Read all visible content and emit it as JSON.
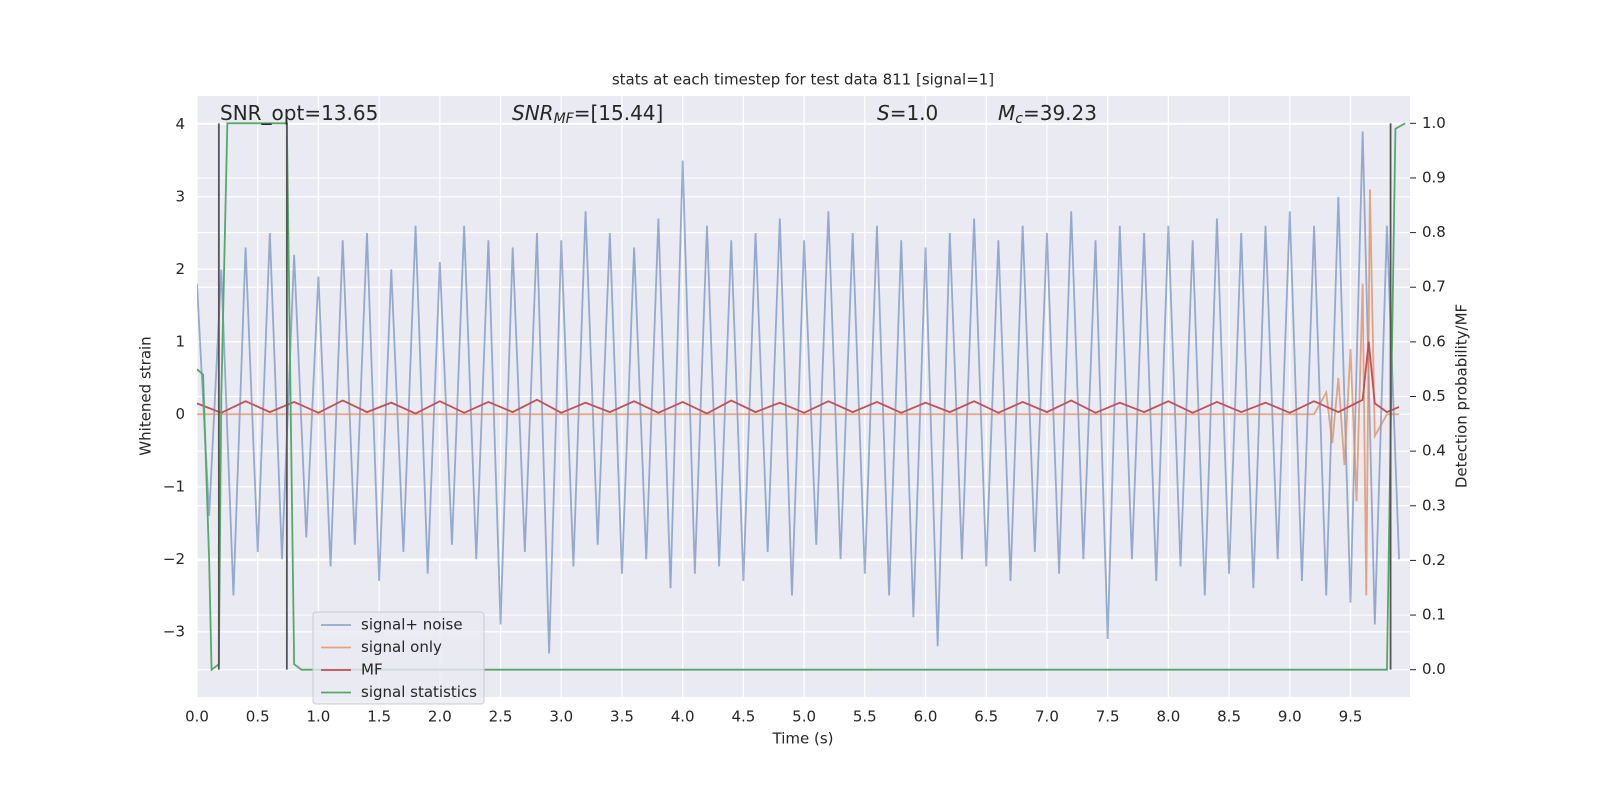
{
  "chart_data": {
    "type": "line",
    "title": "stats at each timestep for test data 811 [signal=1]",
    "xlabel": "Time (s)",
    "ylabel": "Whitened strain",
    "y2label": "Detection probability/MF",
    "xlim": [
      0,
      9.99
    ],
    "ylim": [
      -3.9,
      4.39
    ],
    "y2lim": [
      -0.05,
      1.05
    ],
    "xticks": [
      {
        "value": 0,
        "label": "0.0"
      },
      0.5,
      {
        "value": 1,
        "label": "1.0"
      },
      1.5,
      {
        "value": 2,
        "label": "2.0"
      },
      2.5,
      {
        "value": 3,
        "label": "3.0"
      },
      3.5,
      {
        "value": 4,
        "label": "4.0"
      },
      4.5,
      {
        "value": 5,
        "label": "5.0"
      },
      5.5,
      {
        "value": 6,
        "label": "6.0"
      },
      6.5,
      {
        "value": 7,
        "label": "7.0"
      },
      7.5,
      {
        "value": 8,
        "label": "8.0"
      },
      8.5,
      {
        "value": 9,
        "label": "9.0"
      },
      9.5
    ],
    "yticks": [
      {
        "value": -3,
        "label": "−3"
      },
      {
        "value": -2,
        "label": "−2"
      },
      {
        "value": -1,
        "label": "−1"
      },
      0,
      1,
      2,
      3,
      4
    ],
    "y2ticks": [
      {
        "value": 0,
        "label": "0.0"
      },
      0.1,
      0.2,
      0.3,
      0.4,
      0.5,
      0.6,
      0.7,
      0.8,
      0.9,
      {
        "value": 1,
        "label": "1.0"
      }
    ],
    "grid": true,
    "legend": "lower left",
    "annotations": [
      {
        "base": "SNR_opt=13.65"
      },
      {
        "base": "SNR",
        "sub": "MF",
        "rest": "=[15.44]"
      },
      {
        "base": "S",
        "rest": "=1.0"
      },
      {
        "base": "M",
        "sub": "c",
        "rest": "=39.23"
      }
    ],
    "vlines": [
      {
        "x": 0.18,
        "y2": [
          0,
          1
        ]
      },
      {
        "x": 0.74,
        "y2": [
          0,
          1
        ]
      },
      {
        "x": 9.83,
        "y2": [
          0,
          1
        ]
      }
    ],
    "vline_color": "#555555",
    "series": [
      {
        "name": "signal+ noise",
        "color": "#4c72b0",
        "opacity": 0.55,
        "x": [
          0,
          0.1,
          0.2,
          0.3,
          0.4,
          0.5,
          0.6,
          0.7,
          0.8,
          0.9,
          1,
          1.1,
          1.2,
          1.3,
          1.4,
          1.5,
          1.6,
          1.7,
          1.8,
          1.9,
          2,
          2.1,
          2.2,
          2.3,
          2.4,
          2.5,
          2.6,
          2.7,
          2.8,
          2.9,
          3,
          3.1,
          3.2,
          3.3,
          3.4,
          3.5,
          3.6,
          3.7,
          3.8,
          3.9,
          4,
          4.1,
          4.2,
          4.3,
          4.4,
          4.5,
          4.6,
          4.7,
          4.8,
          4.9,
          5,
          5.1,
          5.2,
          5.3,
          5.4,
          5.5,
          5.6,
          5.7,
          5.8,
          5.9,
          6,
          6.1,
          6.2,
          6.3,
          6.4,
          6.5,
          6.6,
          6.7,
          6.8,
          6.9,
          7,
          7.1,
          7.2,
          7.3,
          7.4,
          7.5,
          7.6,
          7.7,
          7.8,
          7.9,
          8,
          8.1,
          8.2,
          8.3,
          8.4,
          8.5,
          8.6,
          8.7,
          8.8,
          8.9,
          9,
          9.1,
          9.2,
          9.3,
          9.4,
          9.5,
          9.6,
          9.7,
          9.8,
          9.9
        ],
        "values": [
          1.8,
          -1.4,
          2.0,
          -2.5,
          2.3,
          -1.9,
          2.5,
          -2.0,
          2.2,
          -1.7,
          1.9,
          -2.1,
          2.4,
          -1.8,
          2.5,
          -2.3,
          2.0,
          -1.9,
          2.6,
          -2.2,
          2.1,
          -1.8,
          2.6,
          -2.0,
          2.4,
          -2.9,
          2.3,
          -1.9,
          2.5,
          -3.3,
          2.4,
          -2.1,
          2.8,
          -1.8,
          2.5,
          -2.2,
          2.3,
          -2.0,
          2.7,
          -2.4,
          3.5,
          -2.2,
          2.6,
          -2.1,
          2.4,
          -2.3,
          2.5,
          -1.9,
          2.7,
          -2.5,
          2.4,
          -1.8,
          2.8,
          -2.0,
          2.5,
          -2.2,
          2.6,
          -2.5,
          2.4,
          -2.8,
          2.3,
          -3.2,
          2.5,
          -2.0,
          2.7,
          -2.1,
          2.4,
          -2.3,
          2.6,
          -1.9,
          2.5,
          -2.2,
          2.8,
          -2.0,
          2.4,
          -3.1,
          2.6,
          -2.0,
          2.5,
          -2.3,
          2.6,
          -2.1,
          2.4,
          -2.5,
          2.7,
          -2.2,
          2.5,
          -2.4,
          2.6,
          -2.0,
          2.8,
          -2.3,
          2.6,
          -2.5,
          3.0,
          -2.6,
          3.9,
          -2.9,
          2.6,
          -2.0
        ]
      },
      {
        "name": "signal only",
        "color": "#dd8452",
        "opacity": 0.7,
        "x": [
          0,
          9.2,
          9.3,
          9.35,
          9.4,
          9.45,
          9.5,
          9.55,
          9.6,
          9.63,
          9.66,
          9.7,
          9.8,
          9.9
        ],
        "values": [
          0,
          0,
          0.3,
          -0.4,
          0.5,
          -0.7,
          0.9,
          -1.2,
          1.8,
          -2.5,
          3.1,
          -0.3,
          0,
          0
        ]
      },
      {
        "name": "MF",
        "color": "#c44e52",
        "opacity": 1,
        "x": [
          0,
          0.2,
          0.4,
          0.6,
          0.8,
          1,
          1.2,
          1.4,
          1.6,
          1.8,
          2,
          2.2,
          2.4,
          2.6,
          2.8,
          3,
          3.2,
          3.4,
          3.6,
          3.8,
          4,
          4.2,
          4.4,
          4.6,
          4.8,
          5,
          5.2,
          5.4,
          5.6,
          5.8,
          6,
          6.2,
          6.4,
          6.6,
          6.8,
          7,
          7.2,
          7.4,
          7.6,
          7.8,
          8,
          8.2,
          8.4,
          8.6,
          8.8,
          9,
          9.2,
          9.4,
          9.6,
          9.65,
          9.7,
          9.8,
          9.9
        ],
        "values": [
          0.15,
          0.02,
          0.18,
          0.03,
          0.17,
          0.02,
          0.19,
          0.03,
          0.16,
          0.01,
          0.18,
          0.02,
          0.17,
          0.03,
          0.2,
          0.02,
          0.16,
          0.03,
          0.18,
          0.02,
          0.17,
          0.01,
          0.19,
          0.03,
          0.16,
          0.02,
          0.18,
          0.03,
          0.17,
          0.02,
          0.16,
          0.03,
          0.18,
          0.02,
          0.17,
          0.03,
          0.19,
          0.02,
          0.16,
          0.03,
          0.18,
          0.02,
          0.17,
          0.03,
          0.16,
          0.02,
          0.18,
          0.03,
          0.2,
          1.0,
          0.15,
          0.03,
          0.1
        ]
      },
      {
        "name": "signal statistics",
        "color": "#55a868",
        "opacity": 1,
        "axis": "y2",
        "x": [
          0,
          0.05,
          0.1,
          0.12,
          0.18,
          0.2,
          0.25,
          0.74,
          0.8,
          0.86,
          9.8,
          9.87,
          9.95
        ],
        "values": [
          0.55,
          0.54,
          0.2,
          0,
          0.01,
          0.5,
          1.0,
          1.0,
          0.01,
          0,
          0,
          0.99,
          1.0
        ]
      }
    ]
  }
}
